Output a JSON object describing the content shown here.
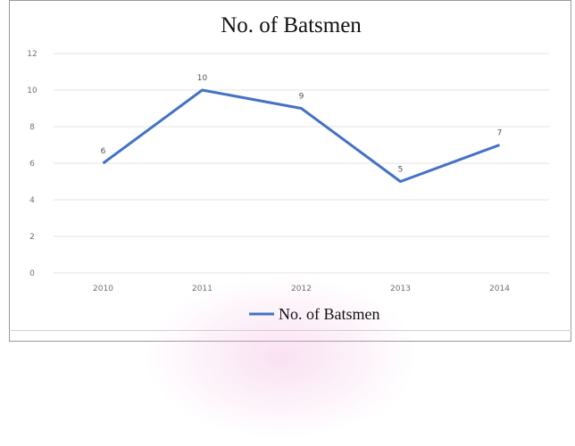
{
  "chart_data": {
    "type": "line",
    "title": "No. of Batsmen",
    "xlabel": "",
    "ylabel": "",
    "categories": [
      "2010",
      "2011",
      "2012",
      "2013",
      "2014"
    ],
    "series": [
      {
        "name": "No. of Batsmen",
        "values": [
          6,
          10,
          9,
          5,
          7
        ],
        "color": "#4472c4"
      }
    ],
    "ylim": [
      0,
      12
    ],
    "yticks": [
      0,
      2,
      4,
      6,
      8,
      10,
      12
    ],
    "data_labels": [
      "6",
      "10",
      "9",
      "5",
      "7"
    ],
    "grid": true,
    "legend": "bottom"
  }
}
